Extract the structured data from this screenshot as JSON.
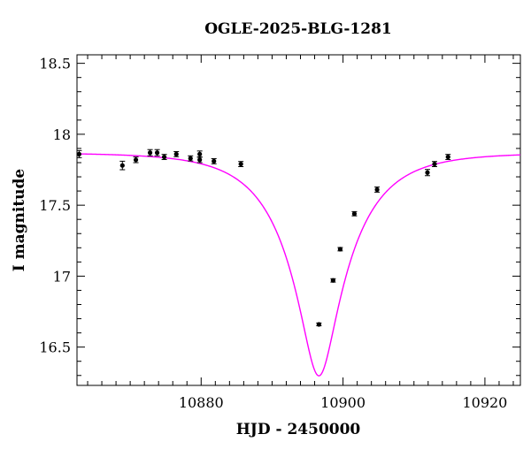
{
  "chart_data": {
    "type": "scatter",
    "title": "OGLE-2025-BLG-1281",
    "xlabel": "HJD - 2450000",
    "ylabel": "I magnitude",
    "xlim": [
      10862.5,
      10925.0
    ],
    "ylim": [
      18.56,
      16.23
    ],
    "y_inverted": true,
    "xticks_major": [
      10880,
      10900,
      10920
    ],
    "xticks_major_labels": [
      "10880",
      "10900",
      "10920"
    ],
    "yticks_major": [
      16.5,
      17.0,
      17.5,
      18.0,
      18.5
    ],
    "yticks_major_labels": [
      "16.5",
      "17",
      "17.5",
      "18",
      "18.5"
    ],
    "grid": false,
    "colors": {
      "model": "#ff00ff",
      "points": "#000000",
      "frame": "#000000"
    },
    "model": {
      "name": "",
      "t0": 10896.6,
      "u0": 0.24,
      "tE": 9.0,
      "baseline_mag": 17.87
    },
    "series": [
      {
        "name": "",
        "points": [
          {
            "x": 10862.8,
            "y": 17.86,
            "err": 0.025
          },
          {
            "x": 10868.9,
            "y": 17.78,
            "err": 0.03
          },
          {
            "x": 10870.8,
            "y": 17.82,
            "err": 0.02
          },
          {
            "x": 10872.8,
            "y": 17.87,
            "err": 0.022
          },
          {
            "x": 10873.8,
            "y": 17.87,
            "err": 0.022
          },
          {
            "x": 10874.8,
            "y": 17.84,
            "err": 0.018
          },
          {
            "x": 10876.5,
            "y": 17.86,
            "err": 0.018
          },
          {
            "x": 10878.5,
            "y": 17.83,
            "err": 0.018
          },
          {
            "x": 10879.8,
            "y": 17.82,
            "err": 0.02
          },
          {
            "x": 10879.8,
            "y": 17.86,
            "err": 0.022
          },
          {
            "x": 10881.8,
            "y": 17.81,
            "err": 0.018
          },
          {
            "x": 10885.6,
            "y": 17.79,
            "err": 0.018
          },
          {
            "x": 10896.6,
            "y": 16.66,
            "err": 0.01
          },
          {
            "x": 10898.6,
            "y": 16.97,
            "err": 0.012
          },
          {
            "x": 10899.6,
            "y": 17.19,
            "err": 0.012
          },
          {
            "x": 10901.6,
            "y": 17.44,
            "err": 0.015
          },
          {
            "x": 10904.8,
            "y": 17.61,
            "err": 0.018
          },
          {
            "x": 10911.9,
            "y": 17.73,
            "err": 0.022
          },
          {
            "x": 10912.9,
            "y": 17.79,
            "err": 0.018
          },
          {
            "x": 10914.8,
            "y": 17.84,
            "err": 0.018
          }
        ]
      }
    ]
  }
}
